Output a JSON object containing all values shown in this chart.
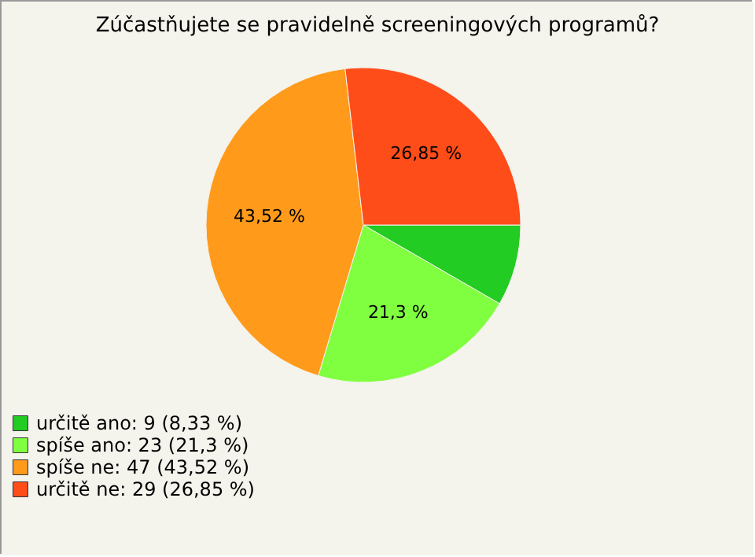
{
  "chart_data": {
    "type": "pie",
    "title": "Zúčastňujete se pravidelně screeningových programů?",
    "categories": [
      "určitě ano: 9 (8,33 %)",
      "spíše ano: 23 (21,3 %)",
      "spíše ne: 47 (43,52 %)",
      "určitě ne: 29 (26,85 %)"
    ],
    "values": [
      8.33,
      21.3,
      43.52,
      26.85
    ],
    "value_labels": [
      null,
      "21,3 %",
      "43,52 %",
      "26,85 %"
    ],
    "colors": [
      "#22cc22",
      "#80ff40",
      "#ff9a1a",
      "#ff4d1a"
    ],
    "legend": "bottom left"
  }
}
